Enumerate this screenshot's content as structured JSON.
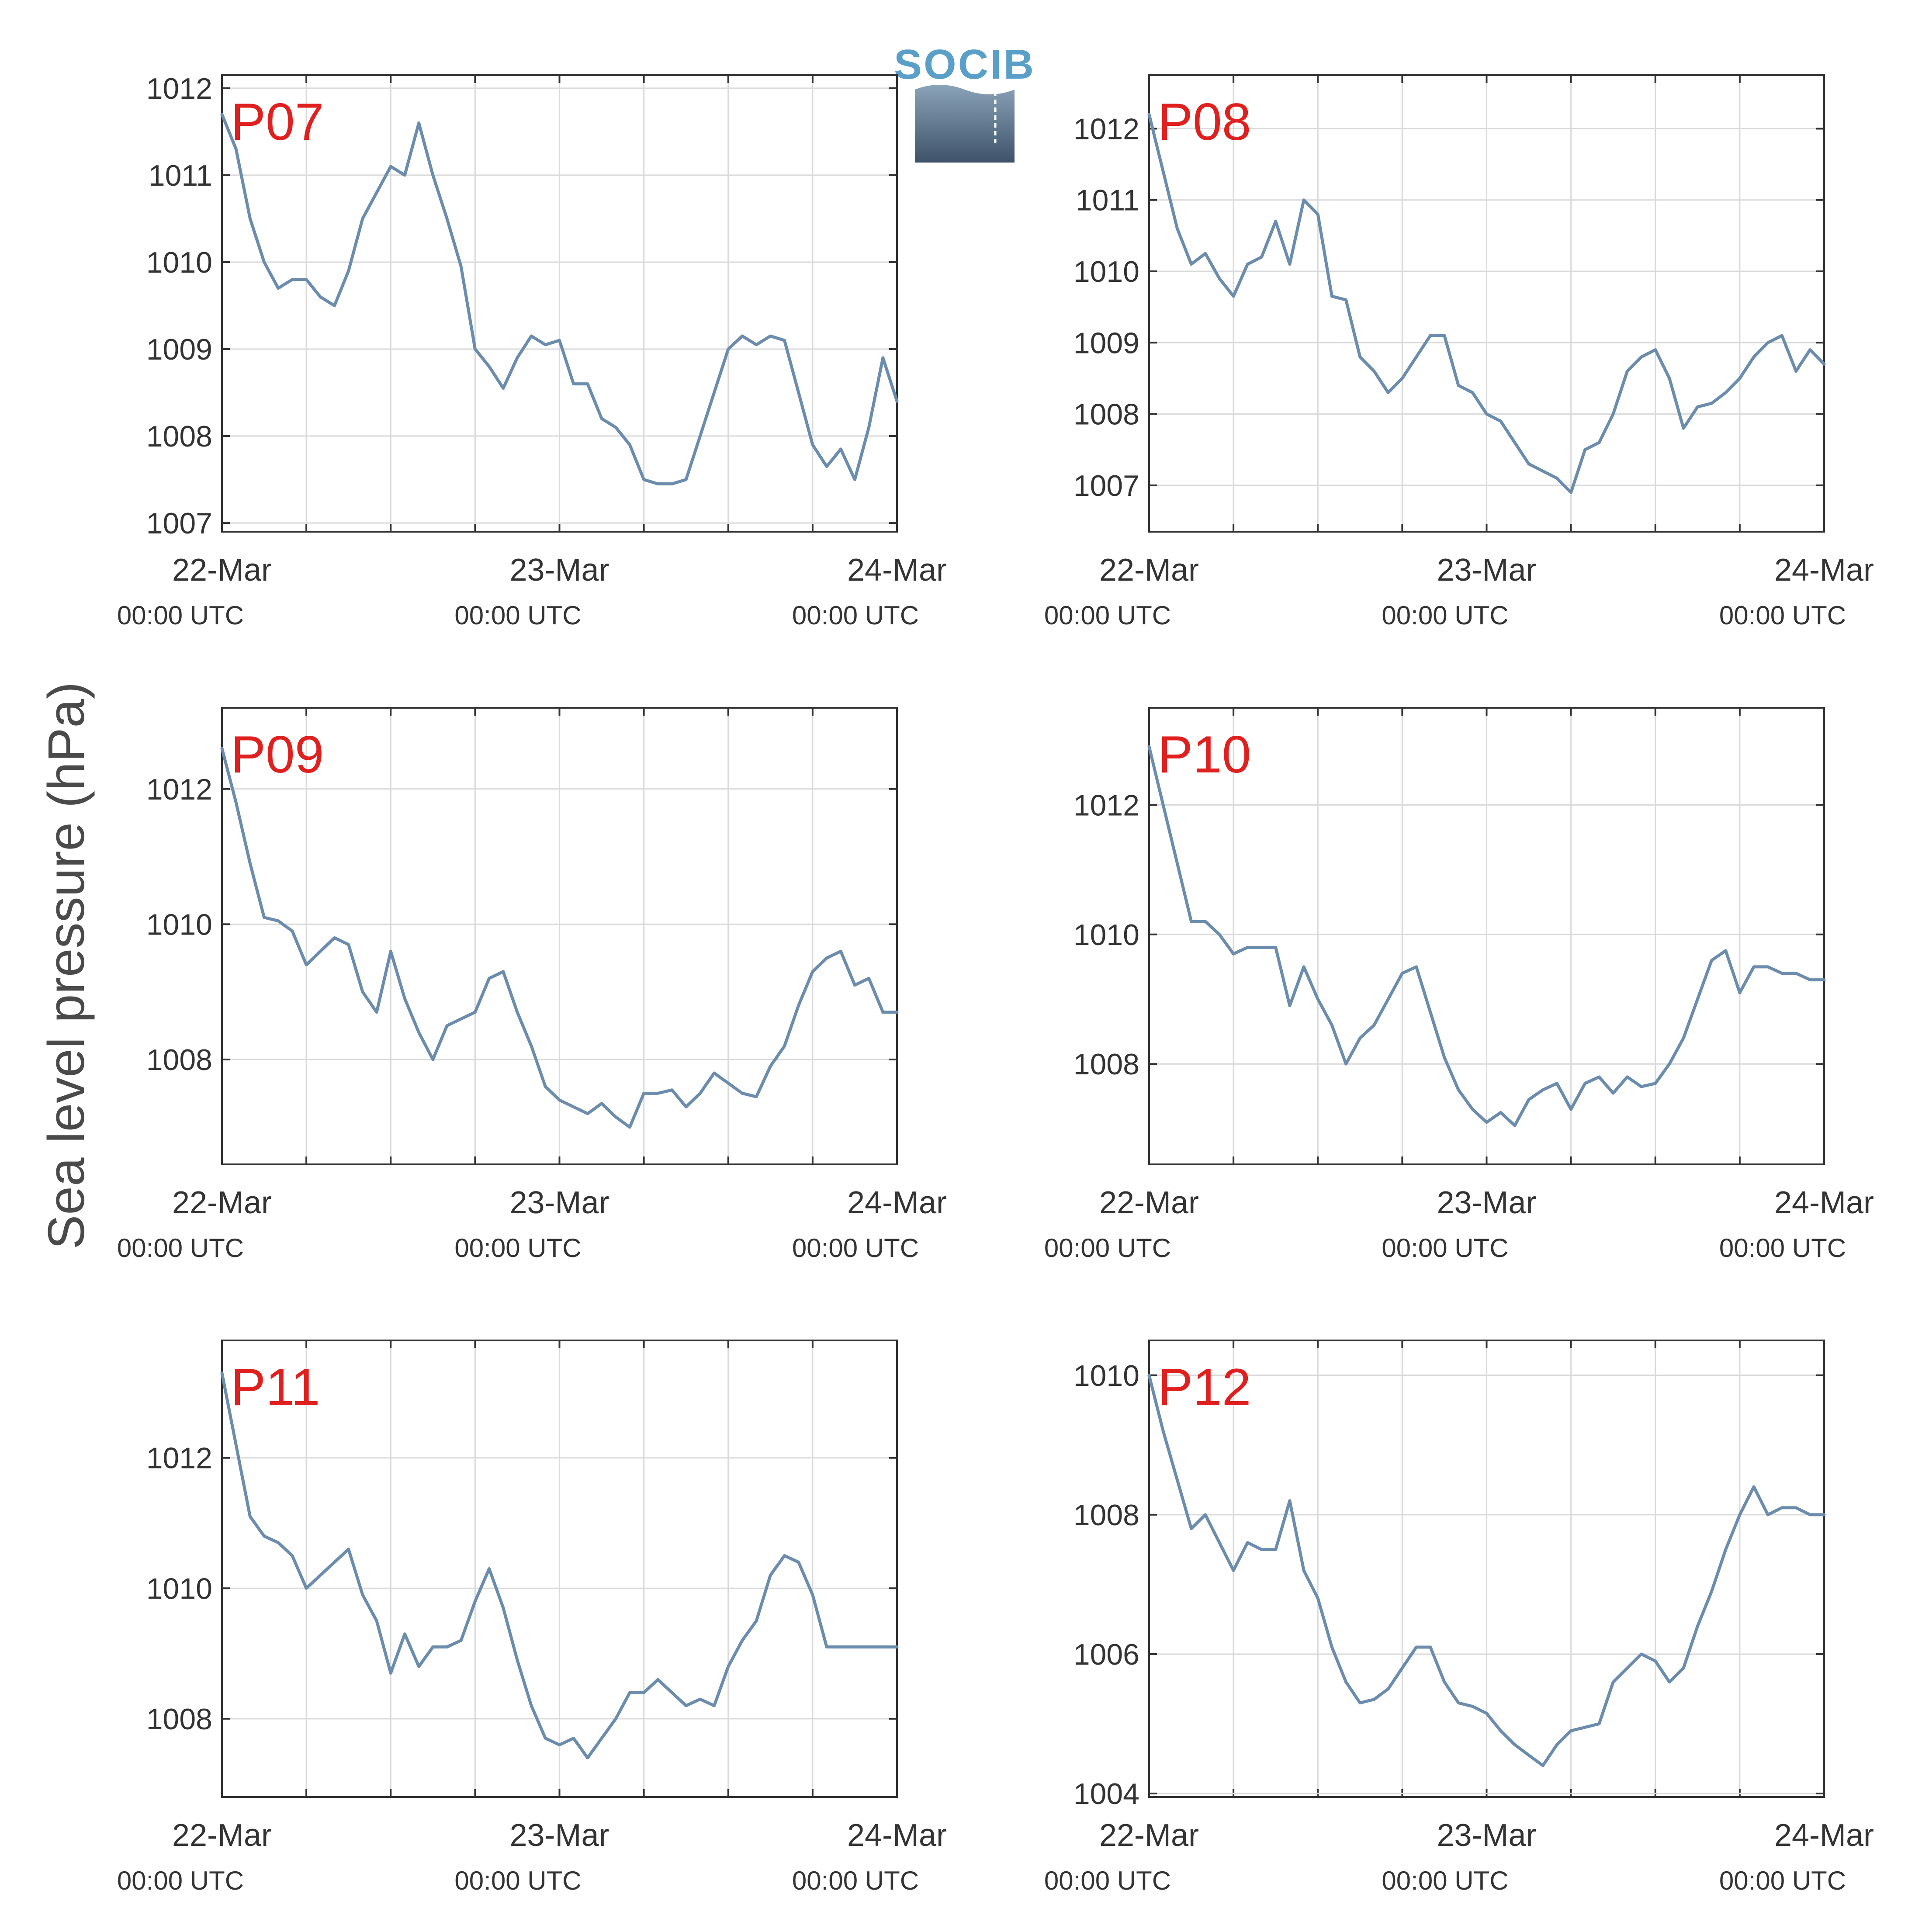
{
  "figure": {
    "ylabel": "Sea level pressure (hPa)",
    "logo": "SOCIB",
    "colors": {
      "line": "#6b8cad",
      "title": "#e0201f",
      "grid": "#d9d9d9",
      "axis": "#333333"
    }
  },
  "chart_data": [
    {
      "type": "line",
      "title": "P07",
      "xlabel_ticks": [
        {
          "date": "22-Mar",
          "time": "00:00 UTC"
        },
        {
          "date": "23-Mar",
          "time": "00:00 UTC"
        },
        {
          "date": "24-Mar",
          "time": "00:00 UTC"
        }
      ],
      "xlim": [
        "2019-03-22T00:00",
        "2019-03-24T00:00"
      ],
      "ylim": [
        1006.9,
        1012.15
      ],
      "yticks": [
        1007,
        1008,
        1009,
        1010,
        1011,
        1012
      ],
      "grid": true,
      "series": [
        {
          "x_hours": [
            0,
            1,
            2,
            3,
            4,
            5,
            6,
            7,
            8,
            9,
            10,
            11,
            12,
            13,
            14,
            15,
            16,
            17,
            18,
            19,
            20,
            21,
            22,
            23,
            24,
            25,
            26,
            27,
            28,
            29,
            30,
            31,
            32,
            33,
            34,
            35,
            36,
            37,
            38,
            39,
            40,
            41,
            42,
            43,
            44,
            45,
            46,
            47,
            48
          ],
          "values": [
            1011.7,
            1011.3,
            1010.5,
            1010.0,
            1009.7,
            1009.8,
            1009.8,
            1009.6,
            1009.5,
            1009.9,
            1010.5,
            1010.8,
            1011.1,
            1011.0,
            1011.6,
            1011.0,
            1010.5,
            1009.95,
            1009.0,
            1008.8,
            1008.55,
            1008.9,
            1009.15,
            1009.05,
            1009.1,
            1008.6,
            1008.6,
            1008.2,
            1008.1,
            1007.9,
            1007.5,
            1007.45,
            1007.45,
            1007.5,
            1008.0,
            1008.5,
            1009.0,
            1009.15,
            1009.05,
            1009.15,
            1009.1,
            1008.5,
            1007.9,
            1007.65,
            1007.85,
            1007.5,
            1008.1,
            1008.9,
            1008.4
          ]
        }
      ]
    },
    {
      "type": "line",
      "title": "P08",
      "xlabel_ticks": [
        {
          "date": "22-Mar",
          "time": "00:00 UTC"
        },
        {
          "date": "23-Mar",
          "time": "00:00 UTC"
        },
        {
          "date": "24-Mar",
          "time": "00:00 UTC"
        }
      ],
      "xlim": [
        "2019-03-22T00:00",
        "2019-03-24T00:00"
      ],
      "ylim": [
        1006.35,
        1012.75
      ],
      "yticks": [
        1007,
        1008,
        1009,
        1010,
        1011,
        1012
      ],
      "grid": true,
      "series": [
        {
          "x_hours": [
            0,
            1,
            2,
            3,
            4,
            5,
            6,
            7,
            8,
            9,
            10,
            11,
            12,
            13,
            14,
            15,
            16,
            17,
            18,
            19,
            20,
            21,
            22,
            23,
            24,
            25,
            26,
            27,
            28,
            29,
            30,
            31,
            32,
            33,
            34,
            35,
            36,
            37,
            38,
            39,
            40,
            41,
            42,
            43,
            44,
            45,
            46,
            47,
            48
          ],
          "values": [
            1012.2,
            1011.4,
            1010.6,
            1010.1,
            1010.25,
            1009.9,
            1009.65,
            1010.1,
            1010.2,
            1010.7,
            1010.1,
            1011.0,
            1010.8,
            1009.65,
            1009.6,
            1008.8,
            1008.6,
            1008.3,
            1008.5,
            1008.8,
            1009.1,
            1009.1,
            1008.4,
            1008.3,
            1008.0,
            1007.9,
            1007.6,
            1007.3,
            1007.2,
            1007.1,
            1006.9,
            1007.5,
            1007.6,
            1008.0,
            1008.6,
            1008.8,
            1008.9,
            1008.5,
            1007.8,
            1008.1,
            1008.15,
            1008.3,
            1008.5,
            1008.8,
            1009.0,
            1009.1,
            1008.6,
            1008.9,
            1008.7
          ]
        }
      ]
    },
    {
      "type": "line",
      "title": "P09",
      "xlabel_ticks": [
        {
          "date": "22-Mar",
          "time": "00:00 UTC"
        },
        {
          "date": "23-Mar",
          "time": "00:00 UTC"
        },
        {
          "date": "24-Mar",
          "time": "00:00 UTC"
        }
      ],
      "xlim": [
        "2019-03-22T00:00",
        "2019-03-24T00:00"
      ],
      "ylim": [
        1006.45,
        1013.2
      ],
      "yticks": [
        1008,
        1010,
        1012
      ],
      "grid": true,
      "series": [
        {
          "x_hours": [
            0,
            1,
            2,
            3,
            4,
            5,
            6,
            7,
            8,
            9,
            10,
            11,
            12,
            13,
            14,
            15,
            16,
            17,
            18,
            19,
            20,
            21,
            22,
            23,
            24,
            25,
            26,
            27,
            28,
            29,
            30,
            31,
            32,
            33,
            34,
            35,
            36,
            37,
            38,
            39,
            40,
            41,
            42,
            43,
            44,
            45,
            46,
            47,
            48
          ],
          "values": [
            1012.6,
            1011.8,
            1010.9,
            1010.1,
            1010.05,
            1009.9,
            1009.4,
            1009.6,
            1009.8,
            1009.7,
            1009.0,
            1008.7,
            1009.6,
            1008.9,
            1008.4,
            1008.0,
            1008.5,
            1008.6,
            1008.7,
            1009.2,
            1009.3,
            1008.7,
            1008.2,
            1007.6,
            1007.4,
            1007.3,
            1007.2,
            1007.35,
            1007.15,
            1007.0,
            1007.5,
            1007.5,
            1007.55,
            1007.3,
            1007.5,
            1007.8,
            1007.65,
            1007.5,
            1007.45,
            1007.9,
            1008.2,
            1008.8,
            1009.3,
            1009.5,
            1009.6,
            1009.1,
            1009.2,
            1008.7,
            1008.7
          ]
        }
      ]
    },
    {
      "type": "line",
      "title": "P10",
      "xlabel_ticks": [
        {
          "date": "22-Mar",
          "time": "00:00 UTC"
        },
        {
          "date": "23-Mar",
          "time": "00:00 UTC"
        },
        {
          "date": "24-Mar",
          "time": "00:00 UTC"
        }
      ],
      "xlim": [
        "2019-03-22T00:00",
        "2019-03-24T00:00"
      ],
      "ylim": [
        1006.45,
        1013.5
      ],
      "yticks": [
        1008,
        1010,
        1012
      ],
      "grid": true,
      "series": [
        {
          "x_hours": [
            0,
            1,
            2,
            3,
            4,
            5,
            6,
            7,
            8,
            9,
            10,
            11,
            12,
            13,
            14,
            15,
            16,
            17,
            18,
            19,
            20,
            21,
            22,
            23,
            24,
            25,
            26,
            27,
            28,
            29,
            30,
            31,
            32,
            33,
            34,
            35,
            36,
            37,
            38,
            39,
            40,
            41,
            42,
            43,
            44,
            45,
            46,
            47,
            48
          ],
          "values": [
            1012.9,
            1012.0,
            1011.1,
            1010.2,
            1010.2,
            1010.0,
            1009.7,
            1009.8,
            1009.8,
            1009.8,
            1008.9,
            1009.5,
            1009.0,
            1008.6,
            1008.0,
            1008.4,
            1008.6,
            1009.0,
            1009.4,
            1009.5,
            1008.8,
            1008.1,
            1007.6,
            1007.3,
            1007.1,
            1007.25,
            1007.05,
            1007.45,
            1007.6,
            1007.7,
            1007.3,
            1007.7,
            1007.8,
            1007.55,
            1007.8,
            1007.65,
            1007.7,
            1008.0,
            1008.4,
            1009.0,
            1009.6,
            1009.75,
            1009.1,
            1009.5,
            1009.5,
            1009.4,
            1009.4,
            1009.3,
            1009.3
          ]
        }
      ]
    },
    {
      "type": "line",
      "title": "P11",
      "xlabel_ticks": [
        {
          "date": "22-Mar",
          "time": "00:00 UTC"
        },
        {
          "date": "23-Mar",
          "time": "00:00 UTC"
        },
        {
          "date": "24-Mar",
          "time": "00:00 UTC"
        }
      ],
      "xlim": [
        "2019-03-22T00:00",
        "2019-03-24T00:00"
      ],
      "ylim": [
        1006.8,
        1013.8
      ],
      "yticks": [
        1008,
        1010,
        1012
      ],
      "grid": true,
      "series": [
        {
          "x_hours": [
            0,
            1,
            2,
            3,
            4,
            5,
            6,
            7,
            8,
            9,
            10,
            11,
            12,
            13,
            14,
            15,
            16,
            17,
            18,
            19,
            20,
            21,
            22,
            23,
            24,
            25,
            26,
            27,
            28,
            29,
            30,
            31,
            32,
            33,
            34,
            35,
            36,
            37,
            38,
            39,
            40,
            41,
            42,
            43,
            44,
            45,
            46,
            47,
            48
          ],
          "values": [
            1013.3,
            1012.2,
            1011.1,
            1010.8,
            1010.7,
            1010.5,
            1010.0,
            1010.2,
            1010.4,
            1010.6,
            1009.9,
            1009.5,
            1008.7,
            1009.3,
            1008.8,
            1009.1,
            1009.1,
            1009.2,
            1009.8,
            1010.3,
            1009.7,
            1008.9,
            1008.2,
            1007.7,
            1007.6,
            1007.7,
            1007.4,
            1007.7,
            1008.0,
            1008.4,
            1008.4,
            1008.6,
            1008.4,
            1008.2,
            1008.3,
            1008.2,
            1008.8,
            1009.2,
            1009.5,
            1010.2,
            1010.5,
            1010.4,
            1009.9,
            1009.1,
            1009.1,
            1009.1,
            1009.1,
            1009.1,
            1009.1
          ]
        }
      ]
    },
    {
      "type": "line",
      "title": "P12",
      "xlabel_ticks": [
        {
          "date": "22-Mar",
          "time": "00:00 UTC"
        },
        {
          "date": "23-Mar",
          "time": "00:00 UTC"
        },
        {
          "date": "24-Mar",
          "time": "00:00 UTC"
        }
      ],
      "xlim": [
        "2019-03-22T00:00",
        "2019-03-24T00:00"
      ],
      "ylim": [
        1003.95,
        1010.5
      ],
      "yticks": [
        1004,
        1006,
        1008,
        1010
      ],
      "grid": true,
      "series": [
        {
          "x_hours": [
            0,
            1,
            2,
            3,
            4,
            5,
            6,
            7,
            8,
            9,
            10,
            11,
            12,
            13,
            14,
            15,
            16,
            17,
            18,
            19,
            20,
            21,
            22,
            23,
            24,
            25,
            26,
            27,
            28,
            29,
            30,
            31,
            32,
            33,
            34,
            35,
            36,
            37,
            38,
            39,
            40,
            41,
            42,
            43,
            44,
            45,
            46,
            47,
            48
          ],
          "values": [
            1010.0,
            1009.2,
            1008.5,
            1007.8,
            1008.0,
            1007.6,
            1007.2,
            1007.6,
            1007.5,
            1007.5,
            1008.2,
            1007.2,
            1006.8,
            1006.1,
            1005.6,
            1005.3,
            1005.35,
            1005.5,
            1005.8,
            1006.1,
            1006.1,
            1005.6,
            1005.3,
            1005.25,
            1005.15,
            1004.9,
            1004.7,
            1004.55,
            1004.4,
            1004.7,
            1004.9,
            1004.95,
            1005.0,
            1005.6,
            1005.8,
            1006.0,
            1005.9,
            1005.6,
            1005.8,
            1006.4,
            1006.9,
            1007.5,
            1008.0,
            1008.4,
            1008.0,
            1008.1,
            1008.1,
            1008.0,
            1008.0
          ]
        }
      ]
    }
  ]
}
